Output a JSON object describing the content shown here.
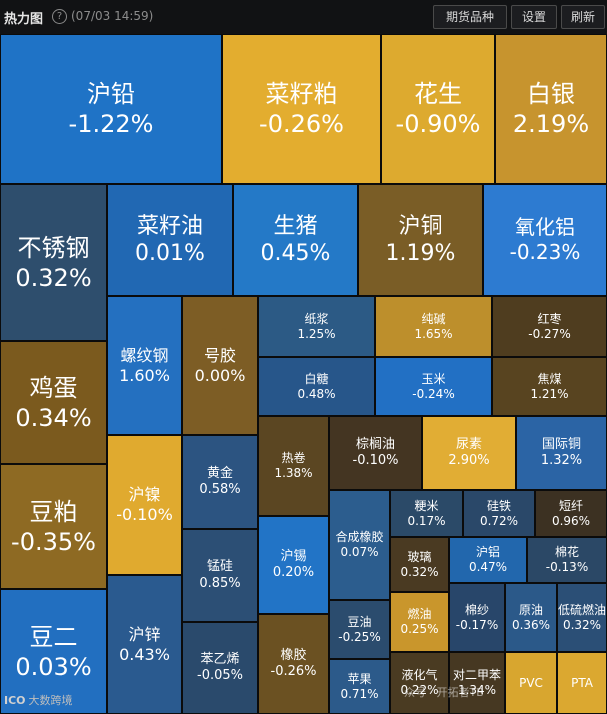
{
  "header": {
    "title": "热力图",
    "timestamp": "(07/03 14:59)",
    "buttons": {
      "futures": "期货品种",
      "settings": "设置",
      "refresh": "刷新"
    }
  },
  "colors": {
    "up": "#1f73c6",
    "down": "#d6a930"
  },
  "tiles": [
    {
      "name": "沪铅",
      "pct": "-1.22%",
      "bg": "#1f73c6"
    },
    {
      "name": "菜籽粕",
      "pct": "-0.26%",
      "bg": "#e3ad2f"
    },
    {
      "name": "花生",
      "pct": "-0.90%",
      "bg": "#ddaa2f"
    },
    {
      "name": "白银",
      "pct": "2.19%",
      "bg": "#c7942e"
    },
    {
      "name": "不锈钢",
      "pct": "0.32%",
      "bg": "#2e4e6d"
    },
    {
      "name": "菜籽油",
      "pct": "0.01%",
      "bg": "#2168b3"
    },
    {
      "name": "生猪",
      "pct": "0.45%",
      "bg": "#2479c7"
    },
    {
      "name": "沪铜",
      "pct": "1.19%",
      "bg": "#7a5d26"
    },
    {
      "name": "氧化铝",
      "pct": "-0.23%",
      "bg": "#2d7bd1"
    },
    {
      "name": "鸡蛋",
      "pct": "0.34%",
      "bg": "#7b5a1e"
    },
    {
      "name": "豆粕",
      "pct": "-0.35%",
      "bg": "#8e6a23"
    },
    {
      "name": "豆二",
      "pct": "0.03%",
      "bg": "#226fc0"
    },
    {
      "name": "螺纹钢",
      "pct": "1.60%",
      "bg": "#2470c0"
    },
    {
      "name": "号胶",
      "pct": "0.00%",
      "bg": "#7d5d25"
    },
    {
      "name": "纸浆",
      "pct": "1.25%",
      "bg": "#2c5a85"
    },
    {
      "name": "纯碱",
      "pct": "1.65%",
      "bg": "#bd8f2c"
    },
    {
      "name": "红枣",
      "pct": "-0.27%",
      "bg": "#4f3d1f"
    },
    {
      "name": "白糖",
      "pct": "0.48%",
      "bg": "#27568a"
    },
    {
      "name": "玉米",
      "pct": "-0.24%",
      "bg": "#2270c4"
    },
    {
      "name": "焦煤",
      "pct": "1.21%",
      "bg": "#584420"
    },
    {
      "name": "沪镍",
      "pct": "-0.10%",
      "bg": "#e0aa2f"
    },
    {
      "name": "黄金",
      "pct": "0.58%",
      "bg": "#2c5481"
    },
    {
      "name": "热卷",
      "pct": "1.38%",
      "bg": "#5b4622"
    },
    {
      "name": "棕榈油",
      "pct": "-0.10%",
      "bg": "#443522"
    },
    {
      "name": "尿素",
      "pct": "2.90%",
      "bg": "#e1ad34"
    },
    {
      "name": "国际铜",
      "pct": "1.32%",
      "bg": "#2b64a5"
    },
    {
      "name": "粳米",
      "pct": "0.17%",
      "bg": "#2b4a68"
    },
    {
      "name": "硅铁",
      "pct": "0.72%",
      "bg": "#2a4869"
    },
    {
      "name": "短纤",
      "pct": "0.96%",
      "bg": "#3c3122"
    },
    {
      "name": "锰硅",
      "pct": "0.85%",
      "bg": "#2c4f75"
    },
    {
      "name": "沪锡",
      "pct": "0.20%",
      "bg": "#2274c6"
    },
    {
      "name": "合成橡胶",
      "pct": "0.07%",
      "bg": "#2c5d8e"
    },
    {
      "name": "玻璃",
      "pct": "0.32%",
      "bg": "#4a3a22"
    },
    {
      "name": "沪铝",
      "pct": "0.47%",
      "bg": "#2267ad"
    },
    {
      "name": "棉花",
      "pct": "-0.13%",
      "bg": "#2b4866"
    },
    {
      "name": "沪锌",
      "pct": "0.43%",
      "bg": "#2a5a8f"
    },
    {
      "name": "燃油",
      "pct": "0.25%",
      "bg": "#c9962c"
    },
    {
      "name": "棉纱",
      "pct": "-0.17%",
      "bg": "#28466a"
    },
    {
      "name": "原油",
      "pct": "0.36%",
      "bg": "#2b5989"
    },
    {
      "name": "低硫燃油",
      "pct": "0.32%",
      "bg": "#2b4f76"
    },
    {
      "name": "苯乙烯",
      "pct": "-0.05%",
      "bg": "#2a4a6c"
    },
    {
      "name": "橡胶",
      "pct": "-0.26%",
      "bg": "#6b5122"
    },
    {
      "name": "豆油",
      "pct": "-0.25%",
      "bg": "#2b4c6e"
    },
    {
      "name": "苹果",
      "pct": "0.71%",
      "bg": "#2c5a8a"
    },
    {
      "name": "液化气",
      "pct": "0.22%",
      "bg": "#4a3b22"
    },
    {
      "name": "对二甲苯",
      "pct": "1.34%",
      "bg": "#463822"
    },
    {
      "name": "PVC",
      "pct": "",
      "bg": "#d8a62f"
    },
    {
      "name": "PTA",
      "pct": "",
      "bg": "#dba830"
    }
  ],
  "watermark": {
    "logo": "ICO",
    "text": "大数跨境",
    "overlay": "众号 · 开拓者TB"
  }
}
